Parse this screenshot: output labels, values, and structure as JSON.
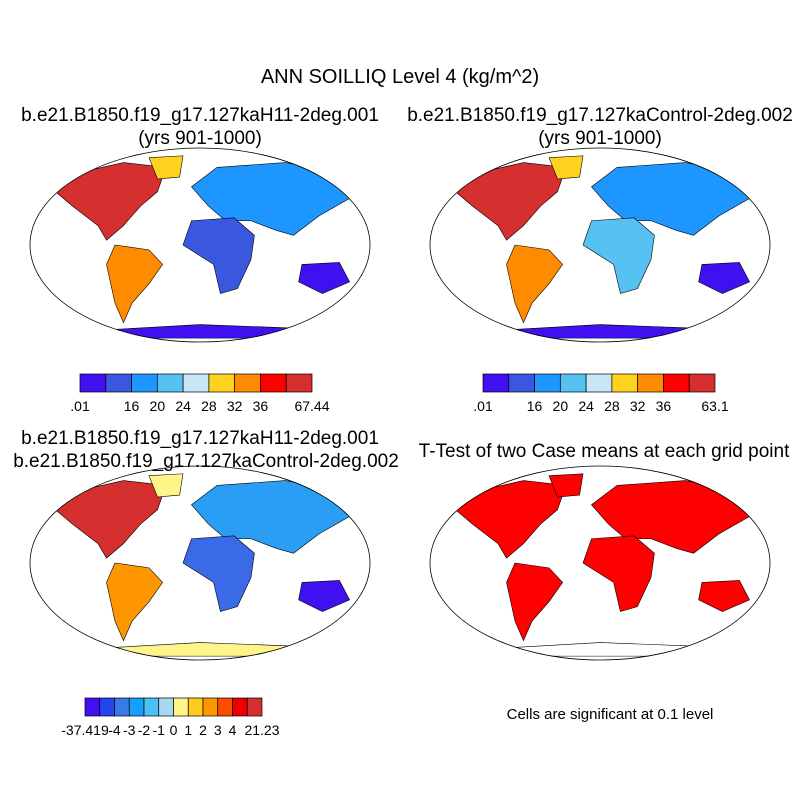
{
  "title": "ANN SOILLIQ Level 4 (kg/m^2)",
  "panels": [
    {
      "id": "case1",
      "title_lines": [
        "b.e21.B1850.f19_g17.127kaH11-2deg.001",
        "(yrs 901-1000)"
      ],
      "fill": [
        "#d62f2f",
        "#ff8c00",
        "#fed21e",
        "#1e96ff",
        "#3a57e0",
        "#4010f0"
      ]
    },
    {
      "id": "case2",
      "title_lines": [
        "b.e21.B1850.f19_g17.127kaControl-2deg.002",
        "(yrs 901-1000)"
      ],
      "fill": [
        "#d62f2f",
        "#ff8c00",
        "#fed21e",
        "#1e96ff",
        "#55c2f2",
        "#4010f0"
      ]
    },
    {
      "id": "diff",
      "title_lines": [
        "b.e21.B1850.f19_g17.127kaH11-2deg.001",
        "b.e21.B1850.f19_g17.127kaControl-2deg.002"
      ],
      "fill": [
        "#d62f2f",
        "#fe9600",
        "#fff48a",
        "#2a9ef5",
        "#3a6ae8",
        "#4010f0"
      ]
    },
    {
      "id": "ttest",
      "title_lines": [
        "T-Test of two Case means at each grid point"
      ],
      "fill": [
        "#ff0000",
        "#ff0000",
        "#ff0000",
        "#ff0000",
        "#ff0000",
        "#ff0000"
      ]
    }
  ],
  "colorbars": [
    {
      "colors": [
        "#4010f0",
        "#3a57e0",
        "#1e96ff",
        "#55c2f2",
        "#c8e6f8",
        "#fed21e",
        "#ff8c00",
        "#ff0000",
        "#d62f2f"
      ],
      "labels": [
        {
          "text": ".01",
          "at": 0
        },
        {
          "text": "16",
          "at": 2
        },
        {
          "text": "20",
          "at": 3
        },
        {
          "text": "24",
          "at": 4
        },
        {
          "text": "28",
          "at": 5
        },
        {
          "text": "32",
          "at": 6
        },
        {
          "text": "36",
          "at": 7
        },
        {
          "text": "67.44",
          "at": 9
        }
      ]
    },
    {
      "colors": [
        "#4010f0",
        "#3a57e0",
        "#1e96ff",
        "#55c2f2",
        "#c8e6f8",
        "#fed21e",
        "#ff8c00",
        "#ff0000",
        "#d62f2f"
      ],
      "labels": [
        {
          "text": ".01",
          "at": 0
        },
        {
          "text": "16",
          "at": 2
        },
        {
          "text": "20",
          "at": 3
        },
        {
          "text": "24",
          "at": 4
        },
        {
          "text": "28",
          "at": 5
        },
        {
          "text": "32",
          "at": 6
        },
        {
          "text": "36",
          "at": 7
        },
        {
          "text": "63.1",
          "at": 9
        }
      ]
    },
    {
      "colors": [
        "#4010f0",
        "#2444ee",
        "#3a7ae8",
        "#14a0ff",
        "#4ac0f5",
        "#a8d8f0",
        "#fff48a",
        "#fecb1e",
        "#fe9600",
        "#fe4c00",
        "#ee0000",
        "#d62f2f"
      ],
      "labels": [
        {
          "text": "-37.419",
          "at": 0
        },
        {
          "text": "-4",
          "at": 2
        },
        {
          "text": "-3",
          "at": 3
        },
        {
          "text": "-2",
          "at": 4
        },
        {
          "text": "-1",
          "at": 5
        },
        {
          "text": "0",
          "at": 6
        },
        {
          "text": "1",
          "at": 7
        },
        {
          "text": "2",
          "at": 8
        },
        {
          "text": "3",
          "at": 9
        },
        {
          "text": "4",
          "at": 10
        },
        {
          "text": "21.23",
          "at": 12
        }
      ]
    }
  ],
  "significance_note": "Cells are significant at 0.1 level"
}
